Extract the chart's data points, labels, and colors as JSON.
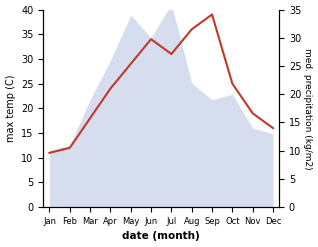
{
  "months": [
    "Jan",
    "Feb",
    "Mar",
    "Apr",
    "May",
    "Jun",
    "Jul",
    "Aug",
    "Sep",
    "Oct",
    "Nov",
    "Dec"
  ],
  "max_temp": [
    11,
    12,
    18,
    24,
    29,
    34,
    31,
    36,
    39,
    25,
    19,
    16
  ],
  "precipitation": [
    10,
    11,
    19,
    26,
    34,
    30,
    36,
    22,
    19,
    20,
    14,
    13
  ],
  "temp_color": "#c0392b",
  "precip_color_fill": "#c5cfe8",
  "ylabel_left": "max temp (C)",
  "ylabel_right": "med. precipitation (kg/m2)",
  "xlabel": "date (month)",
  "ylim_left": [
    0,
    40
  ],
  "ylim_right": [
    0,
    35
  ],
  "bg_color": "#ffffff"
}
